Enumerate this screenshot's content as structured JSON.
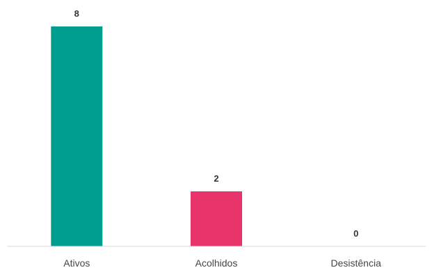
{
  "chart_data": {
    "type": "bar",
    "categories": [
      "Ativos",
      "Acolhidos",
      "Desistência"
    ],
    "values": [
      8,
      2,
      0
    ],
    "colors": [
      "#009E8E",
      "#E8336B",
      "#C8C8C8"
    ],
    "title": "",
    "xlabel": "",
    "ylabel": "",
    "ylim": [
      0,
      8
    ],
    "grid": false,
    "legend": "none"
  }
}
